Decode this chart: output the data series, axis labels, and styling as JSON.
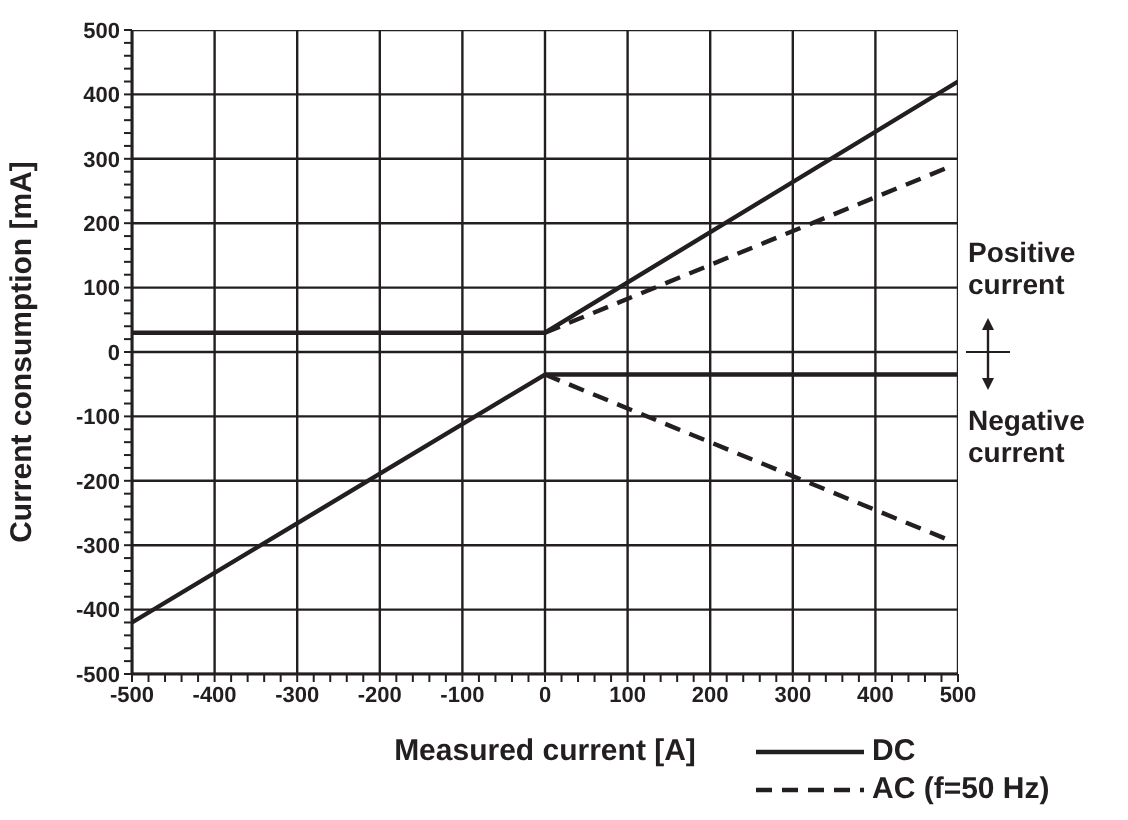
{
  "chart_data": {
    "type": "line",
    "xlabel": "Measured current [A]",
    "ylabel": "Current consumption [mA]",
    "xlim": [
      -500,
      500
    ],
    "ylim": [
      -500,
      500
    ],
    "xticks": [
      -500,
      {
        "value": -480,
        "label": null
      },
      {
        "value": -460,
        "label": null
      },
      {
        "value": -440,
        "label": null
      },
      {
        "value": -420,
        "label": null
      },
      -400,
      {
        "value": -380,
        "label": null
      },
      {
        "value": -360,
        "label": null
      },
      {
        "value": -340,
        "label": null
      },
      {
        "value": -320,
        "label": null
      },
      -300,
      {
        "value": -280,
        "label": null
      },
      {
        "value": -260,
        "label": null
      },
      {
        "value": -240,
        "label": null
      },
      {
        "value": -220,
        "label": null
      },
      -200,
      {
        "value": -180,
        "label": null
      },
      {
        "value": -160,
        "label": null
      },
      {
        "value": -140,
        "label": null
      },
      {
        "value": -120,
        "label": null
      },
      -100,
      {
        "value": -80,
        "label": null
      },
      {
        "value": -60,
        "label": null
      },
      {
        "value": -40,
        "label": null
      },
      {
        "value": -20,
        "label": null
      },
      0,
      {
        "value": 20,
        "label": null
      },
      {
        "value": 40,
        "label": null
      },
      {
        "value": 60,
        "label": null
      },
      {
        "value": 80,
        "label": null
      },
      100,
      {
        "value": 120,
        "label": null
      },
      {
        "value": 140,
        "label": null
      },
      {
        "value": 160,
        "label": null
      },
      {
        "value": 180,
        "label": null
      },
      200,
      {
        "value": 220,
        "label": null
      },
      {
        "value": 240,
        "label": null
      },
      {
        "value": 260,
        "label": null
      },
      {
        "value": 280,
        "label": null
      },
      300,
      {
        "value": 320,
        "label": null
      },
      {
        "value": 340,
        "label": null
      },
      {
        "value": 360,
        "label": null
      },
      {
        "value": 380,
        "label": null
      },
      400,
      {
        "value": 420,
        "label": null
      },
      {
        "value": 440,
        "label": null
      },
      {
        "value": 460,
        "label": null
      },
      {
        "value": 480,
        "label": null
      },
      500
    ],
    "yticks": [
      -500,
      {
        "value": -480,
        "label": null
      },
      {
        "value": -460,
        "label": null
      },
      {
        "value": -440,
        "label": null
      },
      {
        "value": -420,
        "label": null
      },
      -400,
      {
        "value": -380,
        "label": null
      },
      {
        "value": -360,
        "label": null
      },
      {
        "value": -340,
        "label": null
      },
      {
        "value": -320,
        "label": null
      },
      -300,
      {
        "value": -280,
        "label": null
      },
      {
        "value": -260,
        "label": null
      },
      {
        "value": -240,
        "label": null
      },
      {
        "value": -220,
        "label": null
      },
      -200,
      {
        "value": -180,
        "label": null
      },
      {
        "value": -160,
        "label": null
      },
      {
        "value": -140,
        "label": null
      },
      {
        "value": -120,
        "label": null
      },
      -100,
      {
        "value": -80,
        "label": null
      },
      {
        "value": -60,
        "label": null
      },
      {
        "value": -40,
        "label": null
      },
      {
        "value": -20,
        "label": null
      },
      0,
      {
        "value": 20,
        "label": null
      },
      {
        "value": 40,
        "label": null
      },
      {
        "value": 60,
        "label": null
      },
      {
        "value": 80,
        "label": null
      },
      100,
      {
        "value": 120,
        "label": null
      },
      {
        "value": 140,
        "label": null
      },
      {
        "value": 160,
        "label": null
      },
      {
        "value": 180,
        "label": null
      },
      200,
      {
        "value": 220,
        "label": null
      },
      {
        "value": 240,
        "label": null
      },
      {
        "value": 260,
        "label": null
      },
      {
        "value": 280,
        "label": null
      },
      300,
      {
        "value": 320,
        "label": null
      },
      {
        "value": 340,
        "label": null
      },
      {
        "value": 360,
        "label": null
      },
      {
        "value": 380,
        "label": null
      },
      400,
      {
        "value": 420,
        "label": null
      },
      {
        "value": 440,
        "label": null
      },
      {
        "value": 460,
        "label": null
      },
      {
        "value": 480,
        "label": null
      },
      500
    ],
    "grid": true,
    "legend": "bottom right",
    "marker": "none",
    "annotations": [
      "Positive current",
      "Negative current"
    ],
    "series": [
      {
        "name": "DC",
        "color": "#231f20",
        "line_style": "solid",
        "x": [
          -500,
          0,
          500
        ],
        "values": [
          30,
          30,
          420
        ]
      },
      {
        "color": "#231f20",
        "line_style": "solid",
        "x": [
          -500,
          0,
          500
        ],
        "values": [
          -420,
          -35,
          -35
        ]
      },
      {
        "name": "AC (f=50 Hz)",
        "color": "#231f20",
        "line_style": "dashed",
        "x": [
          0,
          485
        ],
        "values": [
          30,
          285
        ]
      },
      {
        "color": "#231f20",
        "line_style": "dashed",
        "x": [
          0,
          485
        ],
        "values": [
          -35,
          -290
        ]
      }
    ]
  }
}
